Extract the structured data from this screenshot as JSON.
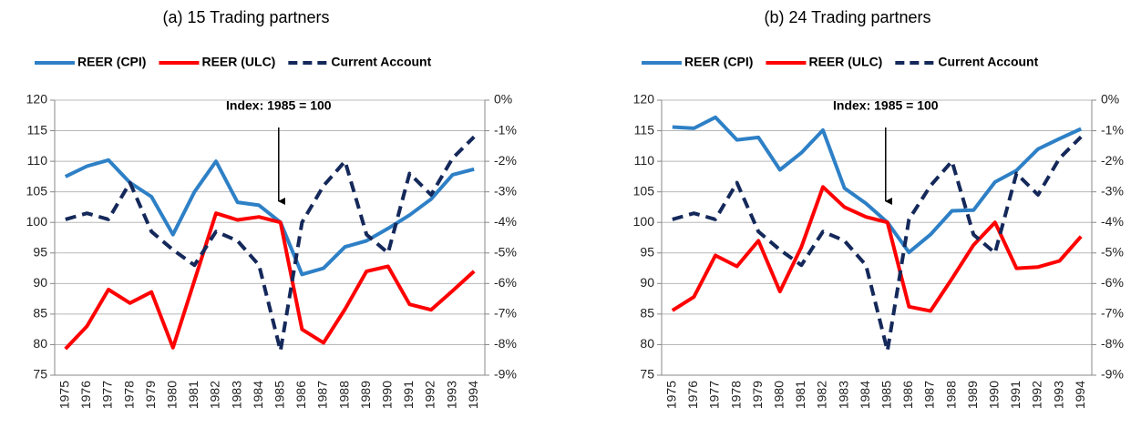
{
  "chart_data": [
    {
      "type": "line",
      "title": "(a) 15 Trading partners",
      "annotation": "Index: 1985 = 100",
      "categories": [
        "1975",
        "1976",
        "1977",
        "1978",
        "1979",
        "1980",
        "1981",
        "1982",
        "1983",
        "1984",
        "1985",
        "1986",
        "1987",
        "1988",
        "1989",
        "1990",
        "1991",
        "1992",
        "1993",
        "1994"
      ],
      "series": [
        {
          "name": "REER (CPI)",
          "color": "#2e80c6",
          "line_style": "solid",
          "values": [
            107.5,
            109.2,
            110.2,
            106.5,
            104.2,
            98,
            105,
            110,
            103.3,
            102.8,
            100,
            91.5,
            92.5,
            96,
            97,
            99,
            101.2,
            103.8,
            107.8,
            108.7
          ]
        },
        {
          "name": "REER (ULC)",
          "color": "#ff0000",
          "line_style": "solid",
          "values": [
            79.3,
            83,
            89,
            86.8,
            88.6,
            79.5,
            90.5,
            101.5,
            100.4,
            100.9,
            100,
            82.5,
            80.3,
            85.8,
            92,
            92.8,
            86.6,
            85.7,
            88.8,
            92
          ]
        },
        {
          "name": "Current Account",
          "color": "#14285a",
          "line_style": "dashed",
          "axis": "y2",
          "values": [
            -3.9,
            -3.7,
            -3.9,
            -2.7,
            -4.3,
            -4.9,
            -5.4,
            -4.3,
            -4.6,
            -5.4,
            -8.2,
            -4.0,
            -2.8,
            -2.0,
            -4.4,
            -5.0,
            -2.4,
            -3.1,
            -1.9,
            -1.2
          ]
        }
      ],
      "ylim": [
        75,
        120
      ],
      "yticks": [
        75,
        80,
        85,
        90,
        95,
        100,
        105,
        110,
        115,
        120
      ],
      "y2lim": [
        -9,
        0
      ],
      "y2ticks": [
        {
          "value": -9,
          "label": "-9%"
        },
        {
          "value": -8,
          "label": "-8%"
        },
        {
          "value": -7,
          "label": "-7%"
        },
        {
          "value": -6,
          "label": "-6%"
        },
        {
          "value": -5,
          "label": "-5%"
        },
        {
          "value": -4,
          "label": "-4%"
        },
        {
          "value": -3,
          "label": "-3%"
        },
        {
          "value": -2,
          "label": "-2%"
        },
        {
          "value": -1,
          "label": "-1%"
        },
        {
          "value": 0,
          "label": "0%"
        }
      ],
      "grid": true,
      "legend": "top"
    },
    {
      "type": "line",
      "title": "(b) 24 Trading partners",
      "annotation": "Index: 1985 = 100",
      "categories": [
        "1975",
        "1976",
        "1977",
        "1978",
        "1979",
        "1980",
        "1981",
        "1982",
        "1983",
        "1984",
        "1985",
        "1986",
        "1987",
        "1988",
        "1989",
        "1990",
        "1991",
        "1992",
        "1993",
        "1994"
      ],
      "series": [
        {
          "name": "REER (CPI)",
          "color": "#2e80c6",
          "line_style": "solid",
          "values": [
            115.6,
            115.4,
            117.2,
            113.5,
            113.9,
            108.6,
            111.4,
            115.1,
            105.6,
            103.1,
            100,
            95.1,
            98,
            101.9,
            102,
            106.6,
            108.5,
            112,
            113.7,
            115.3
          ]
        },
        {
          "name": "REER (ULC)",
          "color": "#ff0000",
          "line_style": "solid",
          "values": [
            85.6,
            87.8,
            94.6,
            92.8,
            97,
            88.7,
            96,
            105.8,
            102.5,
            100.9,
            100,
            86.2,
            85.5,
            90.8,
            96.3,
            100,
            92.5,
            92.7,
            93.7,
            97.7
          ]
        },
        {
          "name": "Current Account",
          "color": "#14285a",
          "line_style": "dashed",
          "axis": "y2",
          "values": [
            -3.9,
            -3.7,
            -3.9,
            -2.7,
            -4.3,
            -4.9,
            -5.4,
            -4.3,
            -4.6,
            -5.4,
            -8.2,
            -3.9,
            -2.8,
            -2.0,
            -4.4,
            -5.0,
            -2.4,
            -3.1,
            -1.9,
            -1.2
          ]
        }
      ],
      "ylim": [
        75,
        120
      ],
      "yticks": [
        75,
        80,
        85,
        90,
        95,
        100,
        105,
        110,
        115,
        120
      ],
      "y2lim": [
        -9,
        0
      ],
      "y2ticks": [
        {
          "value": -9,
          "label": "-9%"
        },
        {
          "value": -8,
          "label": "-8%"
        },
        {
          "value": -7,
          "label": "-7%"
        },
        {
          "value": -6,
          "label": "-6%"
        },
        {
          "value": -5,
          "label": "-5%"
        },
        {
          "value": -4,
          "label": "-4%"
        },
        {
          "value": -3,
          "label": "-3%"
        },
        {
          "value": -2,
          "label": "-2%"
        },
        {
          "value": -1,
          "label": "-1%"
        },
        {
          "value": 0,
          "label": "0%"
        }
      ],
      "grid": true,
      "legend": "top"
    }
  ]
}
